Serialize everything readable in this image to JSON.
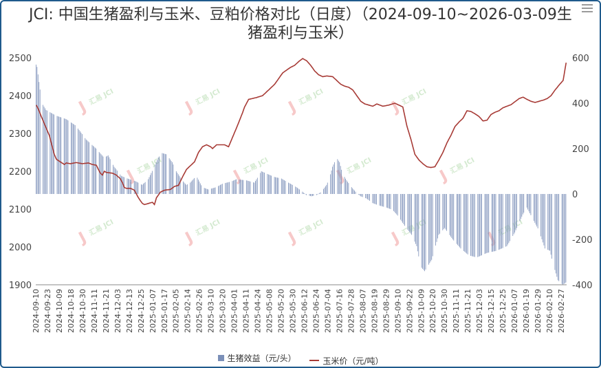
{
  "title": "JCI: 中国生猪盈利与玉米、豆粕价格对比（日度）（2024-09-10~2026-03-09生猪盈利与玉米）",
  "chart_data": {
    "type": "bar+line",
    "title": "JCI: 中国生猪盈利与玉米、豆粕价格对比（日度）（2024-09-10~2026-03-09生猪盈利与玉米）",
    "x_ticks": [
      "2024-09-10",
      "2024-09-23",
      "2024-10-09",
      "2024-10-18",
      "2024-10-30",
      "2024-11-11",
      "2024-11-21",
      "2024-12-03",
      "2024-12-13",
      "2024-12-25",
      "2025-01-07",
      "2025-01-17",
      "2025-02-05",
      "2025-02-14",
      "2025-02-26",
      "2025-03-10",
      "2025-03-20",
      "2025-04-01",
      "2025-04-11",
      "2025-04-24",
      "2025-05-08",
      "2025-05-20",
      "2025-05-30",
      "2025-06-12",
      "2025-06-24",
      "2025-07-04",
      "2025-07-16",
      "2025-07-28",
      "2025-08-07",
      "2025-08-19",
      "2025-08-29",
      "2025-09-10",
      "2025-09-22",
      "2025-10-09",
      "2025-10-20",
      "2025-10-30",
      "2025-11-11",
      "2025-11-21",
      "2025-12-03",
      "2025-12-15",
      "2025-12-25",
      "2026-01-07",
      "2026-01-19",
      "2026-01-29",
      "2026-02-10",
      "2026-02-27"
    ],
    "y_left": {
      "label": "",
      "ticks": [
        1900,
        2000,
        2100,
        2200,
        2300,
        2400,
        2500
      ],
      "range": [
        1900,
        2500
      ]
    },
    "y_right": {
      "label": "",
      "ticks": [
        -400,
        -200,
        0,
        200,
        400,
        600
      ],
      "range": [
        -400,
        600
      ]
    },
    "grid": false,
    "legend_position": "bottom",
    "series": [
      {
        "name": "生猪效益（元/头）",
        "type": "bar",
        "axis": "right",
        "color": "#7b8fb8",
        "keypoints": [
          [
            0,
            570
          ],
          [
            1,
            560
          ],
          [
            4,
            460
          ],
          [
            6,
            400
          ],
          [
            10,
            370
          ],
          [
            20,
            345
          ],
          [
            30,
            330
          ],
          [
            40,
            300
          ],
          [
            50,
            240
          ],
          [
            60,
            200
          ],
          [
            68,
            160
          ],
          [
            72,
            170
          ],
          [
            78,
            120
          ],
          [
            85,
            80
          ],
          [
            90,
            70
          ],
          [
            100,
            55
          ],
          [
            106,
            40
          ],
          [
            112,
            65
          ],
          [
            118,
            120
          ],
          [
            122,
            160
          ],
          [
            126,
            180
          ],
          [
            130,
            175
          ],
          [
            136,
            140
          ],
          [
            140,
            100
          ],
          [
            146,
            60
          ],
          [
            150,
            40
          ],
          [
            154,
            50
          ],
          [
            160,
            80
          ],
          [
            166,
            30
          ],
          [
            172,
            20
          ],
          [
            180,
            30
          ],
          [
            186,
            45
          ],
          [
            195,
            55
          ],
          [
            200,
            65
          ],
          [
            210,
            60
          ],
          [
            218,
            50
          ],
          [
            225,
            100
          ],
          [
            230,
            90
          ],
          [
            238,
            75
          ],
          [
            245,
            68
          ],
          [
            252,
            50
          ],
          [
            260,
            30
          ],
          [
            266,
            10
          ],
          [
            270,
            -5
          ],
          [
            275,
            -10
          ],
          [
            280,
            -5
          ],
          [
            285,
            10
          ],
          [
            290,
            40
          ],
          [
            293,
            70
          ],
          [
            296,
            120
          ],
          [
            300,
            160
          ],
          [
            303,
            140
          ],
          [
            306,
            90
          ],
          [
            310,
            60
          ],
          [
            315,
            30
          ],
          [
            320,
            5
          ],
          [
            324,
            -10
          ],
          [
            330,
            -20
          ],
          [
            336,
            -40
          ],
          [
            342,
            -50
          ],
          [
            350,
            -60
          ],
          [
            356,
            -70
          ],
          [
            362,
            -100
          ],
          [
            368,
            -140
          ],
          [
            375,
            -180
          ],
          [
            380,
            -230
          ],
          [
            384,
            -320
          ],
          [
            388,
            -340
          ],
          [
            395,
            -290
          ],
          [
            402,
            -180
          ],
          [
            408,
            -150
          ],
          [
            416,
            -200
          ],
          [
            424,
            -240
          ],
          [
            432,
            -270
          ],
          [
            440,
            -280
          ],
          [
            450,
            -260
          ],
          [
            460,
            -250
          ],
          [
            470,
            -230
          ],
          [
            478,
            -170
          ],
          [
            486,
            -90
          ],
          [
            490,
            -60
          ],
          [
            496,
            -110
          ],
          [
            502,
            -160
          ],
          [
            508,
            -240
          ],
          [
            513,
            -250
          ],
          [
            517,
            -320
          ],
          [
            521,
            -380
          ],
          [
            526,
            -400
          ],
          [
            529,
            -390
          ]
        ],
        "total_days": 530
      },
      {
        "name": "玉米价（元/吨）",
        "type": "line",
        "axis": "left",
        "color": "#a73a35",
        "keypoints": [
          [
            0,
            2375
          ],
          [
            2,
            2365
          ],
          [
            5,
            2345
          ],
          [
            9,
            2320
          ],
          [
            13,
            2295
          ],
          [
            16,
            2265
          ],
          [
            18,
            2245
          ],
          [
            20,
            2232
          ],
          [
            24,
            2225
          ],
          [
            28,
            2218
          ],
          [
            30,
            2222
          ],
          [
            34,
            2220
          ],
          [
            40,
            2223
          ],
          [
            46,
            2220
          ],
          [
            52,
            2222
          ],
          [
            56,
            2218
          ],
          [
            60,
            2216
          ],
          [
            62,
            2205
          ],
          [
            64,
            2195
          ],
          [
            66,
            2190
          ],
          [
            68,
            2200
          ],
          [
            70,
            2197
          ],
          [
            76,
            2195
          ],
          [
            80,
            2190
          ],
          [
            84,
            2180
          ],
          [
            86,
            2170
          ],
          [
            88,
            2157
          ],
          [
            90,
            2155
          ],
          [
            94,
            2155
          ],
          [
            98,
            2150
          ],
          [
            102,
            2130
          ],
          [
            104,
            2122
          ],
          [
            106,
            2115
          ],
          [
            108,
            2112
          ],
          [
            112,
            2115
          ],
          [
            116,
            2118
          ],
          [
            118,
            2112
          ],
          [
            120,
            2130
          ],
          [
            124,
            2145
          ],
          [
            128,
            2150
          ],
          [
            134,
            2152
          ],
          [
            138,
            2160
          ],
          [
            142,
            2163
          ],
          [
            146,
            2185
          ],
          [
            150,
            2205
          ],
          [
            154,
            2215
          ],
          [
            158,
            2225
          ],
          [
            162,
            2250
          ],
          [
            166,
            2265
          ],
          [
            170,
            2270
          ],
          [
            174,
            2265
          ],
          [
            176,
            2260
          ],
          [
            180,
            2270
          ],
          [
            188,
            2270
          ],
          [
            192,
            2265
          ],
          [
            196,
            2290
          ],
          [
            200,
            2315
          ],
          [
            206,
            2355
          ],
          [
            208,
            2370
          ],
          [
            212,
            2390
          ],
          [
            220,
            2395
          ],
          [
            226,
            2400
          ],
          [
            230,
            2410
          ],
          [
            234,
            2420
          ],
          [
            238,
            2430
          ],
          [
            242,
            2445
          ],
          [
            246,
            2460
          ],
          [
            254,
            2475
          ],
          [
            258,
            2480
          ],
          [
            262,
            2490
          ],
          [
            266,
            2498
          ],
          [
            270,
            2492
          ],
          [
            274,
            2480
          ],
          [
            278,
            2465
          ],
          [
            282,
            2455
          ],
          [
            286,
            2450
          ],
          [
            290,
            2452
          ],
          [
            296,
            2450
          ],
          [
            300,
            2440
          ],
          [
            304,
            2430
          ],
          [
            308,
            2425
          ],
          [
            312,
            2422
          ],
          [
            316,
            2415
          ],
          [
            320,
            2400
          ],
          [
            324,
            2385
          ],
          [
            328,
            2378
          ],
          [
            332,
            2375
          ],
          [
            336,
            2372
          ],
          [
            340,
            2378
          ],
          [
            346,
            2372
          ],
          [
            352,
            2375
          ],
          [
            358,
            2380
          ],
          [
            362,
            2375
          ],
          [
            366,
            2370
          ],
          [
            370,
            2320
          ],
          [
            374,
            2285
          ],
          [
            378,
            2245
          ],
          [
            382,
            2230
          ],
          [
            386,
            2220
          ],
          [
            390,
            2212
          ],
          [
            394,
            2210
          ],
          [
            398,
            2212
          ],
          [
            402,
            2230
          ],
          [
            406,
            2250
          ],
          [
            410,
            2275
          ],
          [
            414,
            2295
          ],
          [
            418,
            2318
          ],
          [
            422,
            2330
          ],
          [
            426,
            2340
          ],
          [
            430,
            2360
          ],
          [
            434,
            2358
          ],
          [
            438,
            2352
          ],
          [
            442,
            2345
          ],
          [
            446,
            2333
          ],
          [
            450,
            2335
          ],
          [
            454,
            2350
          ],
          [
            458,
            2356
          ],
          [
            462,
            2360
          ],
          [
            466,
            2368
          ],
          [
            470,
            2372
          ],
          [
            474,
            2376
          ],
          [
            478,
            2384
          ],
          [
            482,
            2392
          ],
          [
            486,
            2396
          ],
          [
            490,
            2390
          ],
          [
            494,
            2385
          ],
          [
            498,
            2382
          ],
          [
            502,
            2385
          ],
          [
            506,
            2388
          ],
          [
            510,
            2392
          ],
          [
            514,
            2400
          ],
          [
            518,
            2415
          ],
          [
            522,
            2428
          ],
          [
            526,
            2440
          ],
          [
            529,
            2487
          ]
        ],
        "total_days": 530
      }
    ],
    "watermark": "汇易 JCI"
  },
  "legend": {
    "bar_label": "生猪效益（元/头）",
    "line_label": "玉米价（元/吨）"
  },
  "colors": {
    "bar": "#7b8fb8",
    "line": "#a73a35",
    "frame": "#1f5a8c",
    "watermark_red": "#f7c9c9",
    "watermark_green": "#d4ead0"
  }
}
